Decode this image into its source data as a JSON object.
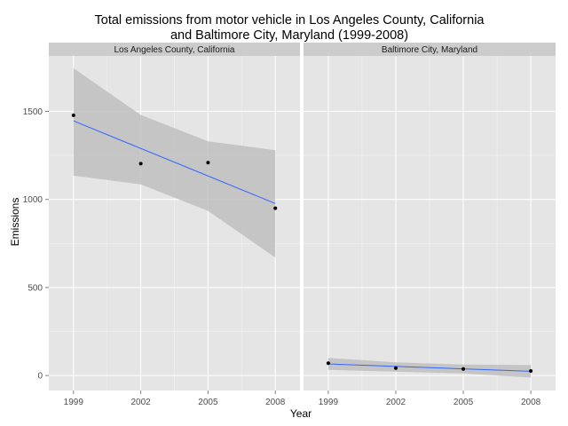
{
  "chart_data": {
    "type": "scatter",
    "title_lines": [
      "Total emissions from motor vehicle in Los Angeles County, California",
      "and Baltimore City, Maryland (1999-2008)"
    ],
    "xlabel": "Year",
    "ylabel": "Emissions",
    "x_ticks": [
      1999,
      2002,
      2005,
      2008
    ],
    "y_ticks": [
      0,
      500,
      1000,
      1500
    ],
    "xlim": [
      1997.9,
      2009.1
    ],
    "ylim": [
      -85,
      1815
    ],
    "grid": true,
    "facets": [
      {
        "label": "Los Angeles County, California",
        "points": [
          {
            "x": 1999,
            "y": 1478
          },
          {
            "x": 2002,
            "y": 1203
          },
          {
            "x": 2005,
            "y": 1209
          },
          {
            "x": 2008,
            "y": 950
          }
        ],
        "fit": {
          "x": [
            1999,
            2008
          ],
          "y": [
            1446,
            977
          ]
        },
        "confidence_band": {
          "x": [
            1999,
            2002,
            2005,
            2008
          ],
          "upper": [
            1745,
            1480,
            1330,
            1280
          ],
          "lower": [
            1135,
            1085,
            935,
            670
          ]
        }
      },
      {
        "label": "Baltimore City, Maryland",
        "points": [
          {
            "x": 1999,
            "y": 70
          },
          {
            "x": 2002,
            "y": 42
          },
          {
            "x": 2005,
            "y": 37
          },
          {
            "x": 2008,
            "y": 26
          }
        ],
        "fit": {
          "x": [
            1999,
            2008
          ],
          "y": [
            66,
            24
          ]
        },
        "confidence_band": {
          "x": [
            1999,
            2002,
            2005,
            2008
          ],
          "upper": [
            100,
            75,
            62,
            60
          ],
          "lower": [
            32,
            22,
            12,
            -12
          ]
        }
      }
    ],
    "colors": {
      "panel_bg": "#e5e5e5",
      "grid_major": "#ffffff",
      "grid_minor": "#f2f2f2",
      "strip_bg": "#cccccc",
      "band": "#bfbfbf",
      "fit_line": "#3366ff",
      "point": "#000000"
    }
  }
}
